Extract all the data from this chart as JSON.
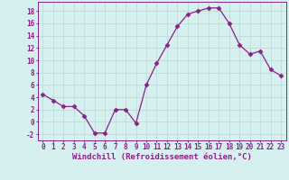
{
  "x": [
    0,
    1,
    2,
    3,
    4,
    5,
    6,
    7,
    8,
    9,
    10,
    11,
    12,
    13,
    14,
    15,
    16,
    17,
    18,
    19,
    20,
    21,
    22,
    23
  ],
  "y": [
    4.5,
    3.5,
    2.5,
    2.5,
    1.0,
    -1.8,
    -1.8,
    2.0,
    2.0,
    -0.2,
    6.0,
    9.5,
    12.5,
    15.5,
    17.5,
    18.0,
    18.5,
    18.5,
    16.0,
    12.5,
    11.0,
    11.5,
    8.5,
    7.5
  ],
  "line_color": "#882288",
  "marker": "D",
  "marker_size": 2.5,
  "bg_color": "#d5f0ee",
  "grid_color": "#b8d8d4",
  "xlabel": "Windchill (Refroidissement éolien,°C)",
  "xlim": [
    -0.5,
    23.5
  ],
  "ylim": [
    -3,
    19.5
  ],
  "xticks": [
    0,
    1,
    2,
    3,
    4,
    5,
    6,
    7,
    8,
    9,
    10,
    11,
    12,
    13,
    14,
    15,
    16,
    17,
    18,
    19,
    20,
    21,
    22,
    23
  ],
  "yticks": [
    -2,
    0,
    2,
    4,
    6,
    8,
    10,
    12,
    14,
    16,
    18
  ],
  "tick_label_size": 5.5,
  "xlabel_size": 6.5
}
